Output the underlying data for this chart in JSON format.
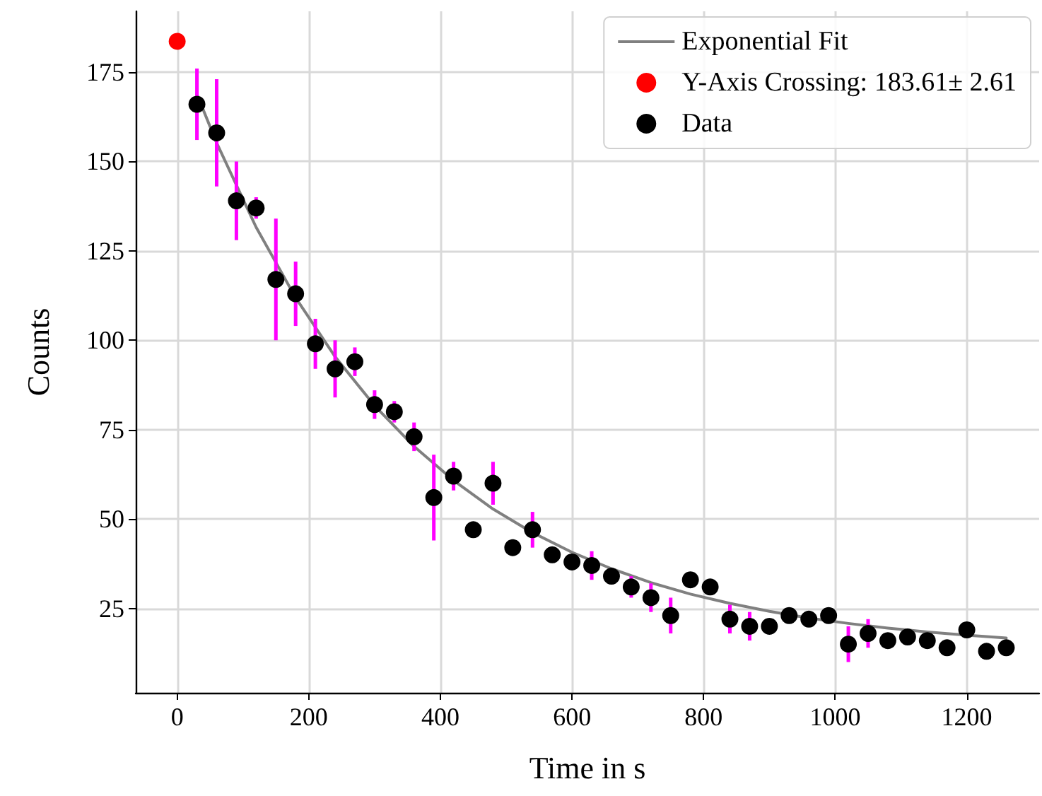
{
  "chart_data": {
    "type": "scatter",
    "xlabel": "Time in s",
    "ylabel": "Counts",
    "xlim": [
      -63,
      1310
    ],
    "ylim": [
      1.4,
      192
    ],
    "xticks": [
      0,
      200,
      400,
      600,
      800,
      1000,
      1200
    ],
    "yticks": [
      25,
      50,
      75,
      100,
      125,
      150,
      175
    ],
    "grid": true,
    "legend": "top right",
    "marker": "circle",
    "series": [
      {
        "name": "Exponential Fit",
        "type": "line",
        "color": "#808080",
        "marker": "none",
        "x": [
          30,
          60,
          120,
          180,
          240,
          300,
          360,
          420,
          480,
          540,
          600,
          660,
          720,
          780,
          840,
          900,
          960,
          1020,
          1080,
          1140,
          1200,
          1260
        ],
        "values": [
          168.8,
          155.2,
          131.6,
          111.9,
          95.4,
          81.7,
          70.3,
          60.8,
          52.8,
          46.2,
          40.7,
          36.1,
          32.2,
          29.0,
          26.4,
          24.2,
          22.3,
          20.8,
          19.5,
          18.4,
          17.5,
          16.7
        ]
      },
      {
        "name": "Y-Axis Crossing: 183.61± 2.61",
        "color": "#ff0000",
        "x": [
          0
        ],
        "values": [
          183.61
        ]
      },
      {
        "name": "Data",
        "color": "#000000",
        "x": [
          30,
          60,
          90,
          120,
          150,
          180,
          210,
          240,
          270,
          300,
          330,
          360,
          390,
          420,
          450,
          480,
          510,
          540,
          570,
          600,
          630,
          660,
          690,
          720,
          750,
          780,
          810,
          840,
          870,
          900,
          930,
          960,
          990,
          1020,
          1050,
          1080,
          1110,
          1140,
          1170,
          1200,
          1230,
          1260
        ],
        "values": [
          166,
          158,
          139,
          137,
          117,
          113,
          99,
          92,
          94,
          82,
          80,
          73,
          56,
          62,
          47,
          60,
          42,
          47,
          40,
          38,
          37,
          34,
          31,
          28,
          23,
          33,
          31,
          22,
          20,
          20,
          23,
          22,
          23,
          15,
          18,
          16,
          17,
          16,
          14,
          19,
          13,
          14
        ],
        "errors": [
          10,
          15,
          11,
          3,
          17,
          9,
          7,
          8,
          4,
          4,
          3,
          4,
          12,
          4,
          null,
          6,
          null,
          5,
          null,
          null,
          4,
          null,
          3,
          4,
          5,
          null,
          null,
          4,
          4,
          null,
          null,
          null,
          null,
          5,
          4,
          null,
          null,
          null,
          null,
          null,
          null,
          null
        ]
      }
    ]
  }
}
